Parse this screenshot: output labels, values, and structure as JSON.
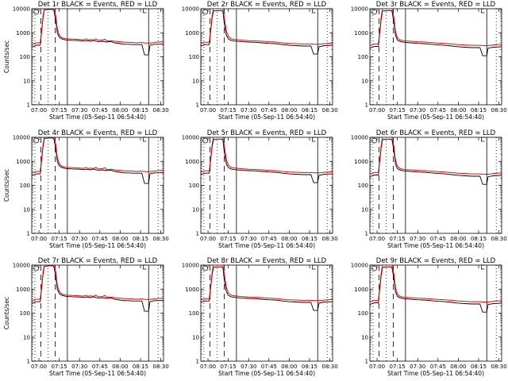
{
  "chart_data": {
    "type": "line",
    "panel_grid": {
      "rows": 3,
      "cols": 3
    },
    "panels": [
      {
        "title": "Det 1r BLACK = Events, RED = LLD",
        "show_ylabel": true,
        "profile": 0
      },
      {
        "title": "Det 2r BLACK = Events, RED = LLD",
        "show_ylabel": false,
        "profile": 1
      },
      {
        "title": "Det 3r BLACK = Events, RED = LLD",
        "show_ylabel": false,
        "profile": 2
      },
      {
        "title": "Det 4r BLACK = Events, RED = LLD",
        "show_ylabel": true,
        "profile": 0
      },
      {
        "title": "Det 5r BLACK = Events, RED = LLD",
        "show_ylabel": false,
        "profile": 1
      },
      {
        "title": "Det 6r BLACK = Events, RED = LLD",
        "show_ylabel": false,
        "profile": 2
      },
      {
        "title": "Det 7r BLACK = Events, RED = LLD",
        "show_ylabel": true,
        "profile": 0
      },
      {
        "title": "Det 8r BLACK = Events, RED = LLD",
        "show_ylabel": false,
        "profile": 1
      },
      {
        "title": "Det 9r BLACK = Events, RED = LLD",
        "show_ylabel": false,
        "profile": 2
      }
    ],
    "xlabel": "Start Time (05-Sep-11 06:54:40)",
    "ylabel": "Counts/sec",
    "x_unit": "minutes from 07:00",
    "xlim": [
      -5.3,
      92
    ],
    "x_ticks": [
      {
        "v": 0,
        "label": "07:00"
      },
      {
        "v": 15,
        "label": "07:15"
      },
      {
        "v": 30,
        "label": "07:30"
      },
      {
        "v": 45,
        "label": "07:45"
      },
      {
        "v": 60,
        "label": "08:00"
      },
      {
        "v": 75,
        "label": "08:15"
      },
      {
        "v": 90,
        "label": "08:30"
      }
    ],
    "y_scale": "log",
    "ylim": [
      1,
      10000
    ],
    "y_ticks": [
      {
        "v": 1,
        "label": "1"
      },
      {
        "v": 10,
        "label": "10"
      },
      {
        "v": 100,
        "label": "100"
      },
      {
        "v": 1000,
        "label": "1000"
      },
      {
        "v": 10000,
        "label": "10000"
      }
    ],
    "series_legend": {
      "events": "BLACK = Events",
      "lld": "RED = LLD"
    },
    "series_colors": {
      "events": "#000000",
      "lld": "#ff0000"
    },
    "profiles": [
      {
        "events": [
          [
            -5.3,
            250
          ],
          [
            -2,
            300
          ],
          [
            1,
            300
          ],
          [
            3,
            4000
          ],
          [
            4,
            9000
          ],
          [
            9,
            9500
          ],
          [
            11,
            9000
          ],
          [
            12.5,
            3000
          ],
          [
            13.5,
            1000
          ],
          [
            15,
            650
          ],
          [
            17,
            550
          ],
          [
            20,
            500
          ],
          [
            25,
            480
          ],
          [
            30,
            470
          ],
          [
            33,
            450
          ],
          [
            36,
            470
          ],
          [
            38,
            440
          ],
          [
            40,
            480
          ],
          [
            44,
            420
          ],
          [
            47,
            440
          ],
          [
            50,
            410
          ],
          [
            53,
            430
          ],
          [
            56,
            380
          ],
          [
            60,
            350
          ],
          [
            63,
            330
          ],
          [
            66,
            330
          ],
          [
            69,
            320
          ],
          [
            72,
            320
          ],
          [
            76,
            320
          ],
          [
            78,
            120
          ],
          [
            81,
            120
          ],
          [
            82,
            300
          ],
          [
            85,
            330
          ],
          [
            88,
            330
          ],
          [
            92,
            340
          ]
        ],
        "lld": [
          [
            -5.3,
            330
          ],
          [
            -2,
            380
          ],
          [
            1,
            380
          ],
          [
            3,
            5000
          ],
          [
            4,
            10000
          ],
          [
            11,
            10000
          ],
          [
            12.5,
            5000
          ],
          [
            13.5,
            1500
          ],
          [
            15,
            800
          ],
          [
            17,
            620
          ],
          [
            20,
            560
          ],
          [
            25,
            540
          ],
          [
            30,
            520
          ],
          [
            33,
            510
          ],
          [
            35,
            560
          ],
          [
            36,
            500
          ],
          [
            38,
            520
          ],
          [
            40,
            500
          ],
          [
            42,
            560
          ],
          [
            44,
            480
          ],
          [
            47,
            500
          ],
          [
            49,
            540
          ],
          [
            50,
            460
          ],
          [
            53,
            470
          ],
          [
            56,
            440
          ],
          [
            60,
            420
          ],
          [
            63,
            400
          ],
          [
            66,
            400
          ],
          [
            69,
            390
          ],
          [
            72,
            380
          ],
          [
            76,
            390
          ],
          [
            79,
            370
          ],
          [
            82,
            370
          ],
          [
            85,
            390
          ],
          [
            88,
            410
          ],
          [
            92,
            420
          ]
        ]
      },
      {
        "events": [
          [
            -5.3,
            280
          ],
          [
            -2,
            320
          ],
          [
            1,
            320
          ],
          [
            3,
            4000
          ],
          [
            4,
            8000
          ],
          [
            9,
            8500
          ],
          [
            11,
            8000
          ],
          [
            12,
            2500
          ],
          [
            13.5,
            800
          ],
          [
            15,
            550
          ],
          [
            17,
            480
          ],
          [
            20,
            450
          ],
          [
            25,
            420
          ],
          [
            30,
            410
          ],
          [
            35,
            400
          ],
          [
            40,
            380
          ],
          [
            45,
            360
          ],
          [
            50,
            350
          ],
          [
            55,
            320
          ],
          [
            60,
            300
          ],
          [
            65,
            290
          ],
          [
            70,
            280
          ],
          [
            76,
            280
          ],
          [
            78,
            130
          ],
          [
            81,
            130
          ],
          [
            82,
            260
          ],
          [
            86,
            290
          ],
          [
            92,
            300
          ]
        ],
        "lld": [
          [
            -5.3,
            360
          ],
          [
            -2,
            400
          ],
          [
            1,
            400
          ],
          [
            3,
            5000
          ],
          [
            4,
            10000
          ],
          [
            11,
            10000
          ],
          [
            12,
            4500
          ],
          [
            13.5,
            1200
          ],
          [
            15,
            700
          ],
          [
            17,
            560
          ],
          [
            20,
            520
          ],
          [
            25,
            490
          ],
          [
            30,
            470
          ],
          [
            35,
            460
          ],
          [
            40,
            440
          ],
          [
            45,
            420
          ],
          [
            50,
            410
          ],
          [
            55,
            380
          ],
          [
            60,
            360
          ],
          [
            65,
            350
          ],
          [
            70,
            340
          ],
          [
            76,
            340
          ],
          [
            79,
            330
          ],
          [
            82,
            330
          ],
          [
            86,
            350
          ],
          [
            92,
            370
          ]
        ]
      },
      {
        "events": [
          [
            -5.3,
            230
          ],
          [
            -2,
            270
          ],
          [
            1,
            270
          ],
          [
            3,
            3500
          ],
          [
            4,
            8000
          ],
          [
            9,
            8500
          ],
          [
            11,
            8000
          ],
          [
            12.5,
            2500
          ],
          [
            13.5,
            800
          ],
          [
            15,
            500
          ],
          [
            17,
            430
          ],
          [
            20,
            400
          ],
          [
            25,
            380
          ],
          [
            30,
            360
          ],
          [
            35,
            350
          ],
          [
            40,
            330
          ],
          [
            45,
            310
          ],
          [
            50,
            300
          ],
          [
            55,
            280
          ],
          [
            60,
            260
          ],
          [
            65,
            250
          ],
          [
            70,
            240
          ],
          [
            76,
            240
          ],
          [
            78,
            110
          ],
          [
            81,
            110
          ],
          [
            82,
            230
          ],
          [
            86,
            250
          ],
          [
            92,
            260
          ]
        ],
        "lld": [
          [
            -5.3,
            300
          ],
          [
            -2,
            340
          ],
          [
            1,
            340
          ],
          [
            3,
            4500
          ],
          [
            4,
            10000
          ],
          [
            11,
            10000
          ],
          [
            12.5,
            4000
          ],
          [
            13.5,
            1200
          ],
          [
            15,
            620
          ],
          [
            17,
            500
          ],
          [
            20,
            460
          ],
          [
            25,
            440
          ],
          [
            30,
            420
          ],
          [
            35,
            410
          ],
          [
            40,
            390
          ],
          [
            45,
            370
          ],
          [
            50,
            360
          ],
          [
            55,
            340
          ],
          [
            60,
            320
          ],
          [
            65,
            310
          ],
          [
            70,
            300
          ],
          [
            76,
            300
          ],
          [
            79,
            290
          ],
          [
            82,
            290
          ],
          [
            86,
            310
          ],
          [
            92,
            330
          ]
        ]
      }
    ],
    "vertical_lines": [
      {
        "x": -3,
        "style": "dotted"
      },
      {
        "x": 1.5,
        "style": "dashed"
      },
      {
        "x": 6.8,
        "style": "dotted"
      },
      {
        "x": 12,
        "style": "dashed"
      },
      {
        "x": 21,
        "style": "solid"
      },
      {
        "x": 81,
        "style": "solid"
      },
      {
        "x": 88,
        "style": "dotted"
      }
    ],
    "markers": [
      {
        "x": -2,
        "style": "circle"
      },
      {
        "x": 77,
        "style": "bracket"
      }
    ]
  }
}
